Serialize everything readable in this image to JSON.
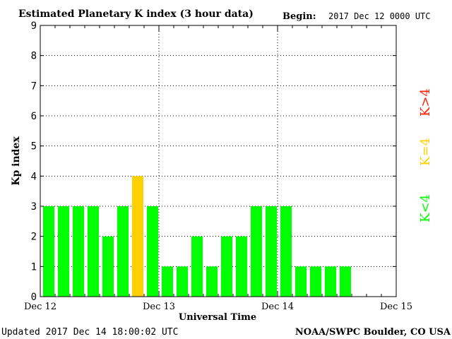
{
  "chart_data": {
    "type": "bar",
    "title": "Estimated Planetary K index (3 hour data)",
    "begin_label": "Begin:",
    "begin_value": "2017 Dec 12 0000 UTC",
    "ylabel": "Kp index",
    "xlabel": "Universal Time",
    "ylim": [
      0,
      9
    ],
    "yticks": [
      "0",
      "1",
      "2",
      "3",
      "4",
      "5",
      "6",
      "7",
      "8",
      "9"
    ],
    "x_ticks": [
      "Dec 12",
      "Dec 13",
      "Dec 14",
      "Dec 15"
    ],
    "interval_hours": 3,
    "values": [
      3,
      3,
      3,
      3,
      2,
      3,
      4,
      3,
      1,
      1,
      2,
      1,
      2,
      2,
      3,
      3,
      3,
      1,
      1,
      1,
      1
    ],
    "grid": true,
    "legend": [
      {
        "label": "K<4",
        "color": "#00ff00"
      },
      {
        "label": "K=4",
        "color": "#ffd000"
      },
      {
        "label": "K>4",
        "color": "#ff2000"
      }
    ],
    "legend_placement": "right"
  },
  "footer": {
    "updated": "Updated 2017 Dec 14 18:00:02 UTC",
    "source": "NOAA/SWPC Boulder, CO USA"
  }
}
